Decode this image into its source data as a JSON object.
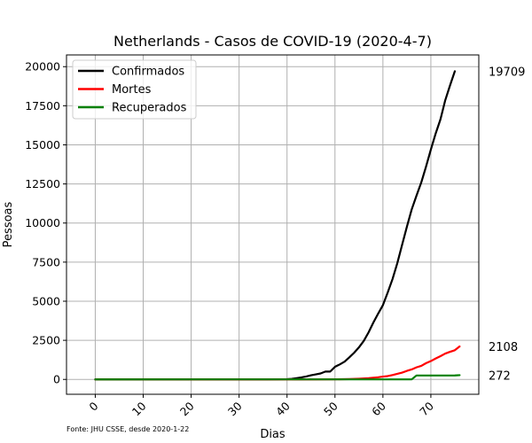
{
  "chart_data": {
    "type": "line",
    "title": "Netherlands - Casos de COVID-19 (2020-4-7)",
    "xlabel": "Dias",
    "ylabel": "Pessoas",
    "xlim": [
      -6,
      80
    ],
    "ylim": [
      -950,
      20750
    ],
    "xticks": [
      0,
      10,
      20,
      30,
      40,
      50,
      60,
      70
    ],
    "yticks": [
      0,
      2500,
      5000,
      7500,
      10000,
      12500,
      15000,
      17500,
      20000
    ],
    "grid": true,
    "legend_position": "top-left",
    "source_note": "Fonte: JHU CSSE, desde 2020-1-22",
    "series": [
      {
        "name": "Confirmados",
        "color": "#000000",
        "end_label": "19709",
        "points": [
          [
            0,
            0
          ],
          [
            36,
            0
          ],
          [
            38,
            6
          ],
          [
            40,
            18
          ],
          [
            41,
            38
          ],
          [
            42,
            82
          ],
          [
            43,
            128
          ],
          [
            44,
            188
          ],
          [
            45,
            265
          ],
          [
            46,
            321
          ],
          [
            47,
            382
          ],
          [
            48,
            503
          ],
          [
            49,
            503
          ],
          [
            50,
            804
          ],
          [
            51,
            959
          ],
          [
            52,
            1135
          ],
          [
            53,
            1413
          ],
          [
            54,
            1705
          ],
          [
            55,
            2051
          ],
          [
            56,
            2460
          ],
          [
            57,
            3003
          ],
          [
            58,
            3631
          ],
          [
            59,
            4204
          ],
          [
            60,
            4749
          ],
          [
            61,
            5560
          ],
          [
            62,
            6412
          ],
          [
            63,
            7431
          ],
          [
            64,
            8603
          ],
          [
            65,
            9762
          ],
          [
            66,
            10866
          ],
          [
            67,
            11750
          ],
          [
            68,
            12595
          ],
          [
            69,
            13614
          ],
          [
            70,
            14697
          ],
          [
            71,
            15723
          ],
          [
            72,
            16627
          ],
          [
            73,
            17851
          ],
          [
            74,
            18803
          ],
          [
            75,
            19709
          ]
        ]
      },
      {
        "name": "Mortes",
        "color": "#ff0000",
        "end_label": "2108",
        "points": [
          [
            0,
            0
          ],
          [
            45,
            0
          ],
          [
            50,
            5
          ],
          [
            53,
            20
          ],
          [
            55,
            43
          ],
          [
            57,
            76
          ],
          [
            58,
            106
          ],
          [
            59,
            136
          ],
          [
            60,
            179
          ],
          [
            61,
            213
          ],
          [
            62,
            276
          ],
          [
            63,
            356
          ],
          [
            64,
            434
          ],
          [
            65,
            546
          ],
          [
            66,
            639
          ],
          [
            67,
            771
          ],
          [
            68,
            864
          ],
          [
            69,
            1039
          ],
          [
            70,
            1173
          ],
          [
            71,
            1339
          ],
          [
            72,
            1487
          ],
          [
            73,
            1651
          ],
          [
            74,
            1766
          ],
          [
            75,
            1867
          ],
          [
            76,
            2108
          ]
        ]
      },
      {
        "name": "Recuperados",
        "color": "#008000",
        "end_label": "272",
        "points": [
          [
            0,
            0
          ],
          [
            66,
            3
          ],
          [
            67,
            250
          ],
          [
            68,
            250
          ],
          [
            69,
            250
          ],
          [
            70,
            250
          ],
          [
            71,
            250
          ],
          [
            72,
            250
          ],
          [
            73,
            250
          ],
          [
            74,
            250
          ],
          [
            75,
            253
          ],
          [
            76,
            272
          ]
        ]
      }
    ]
  }
}
